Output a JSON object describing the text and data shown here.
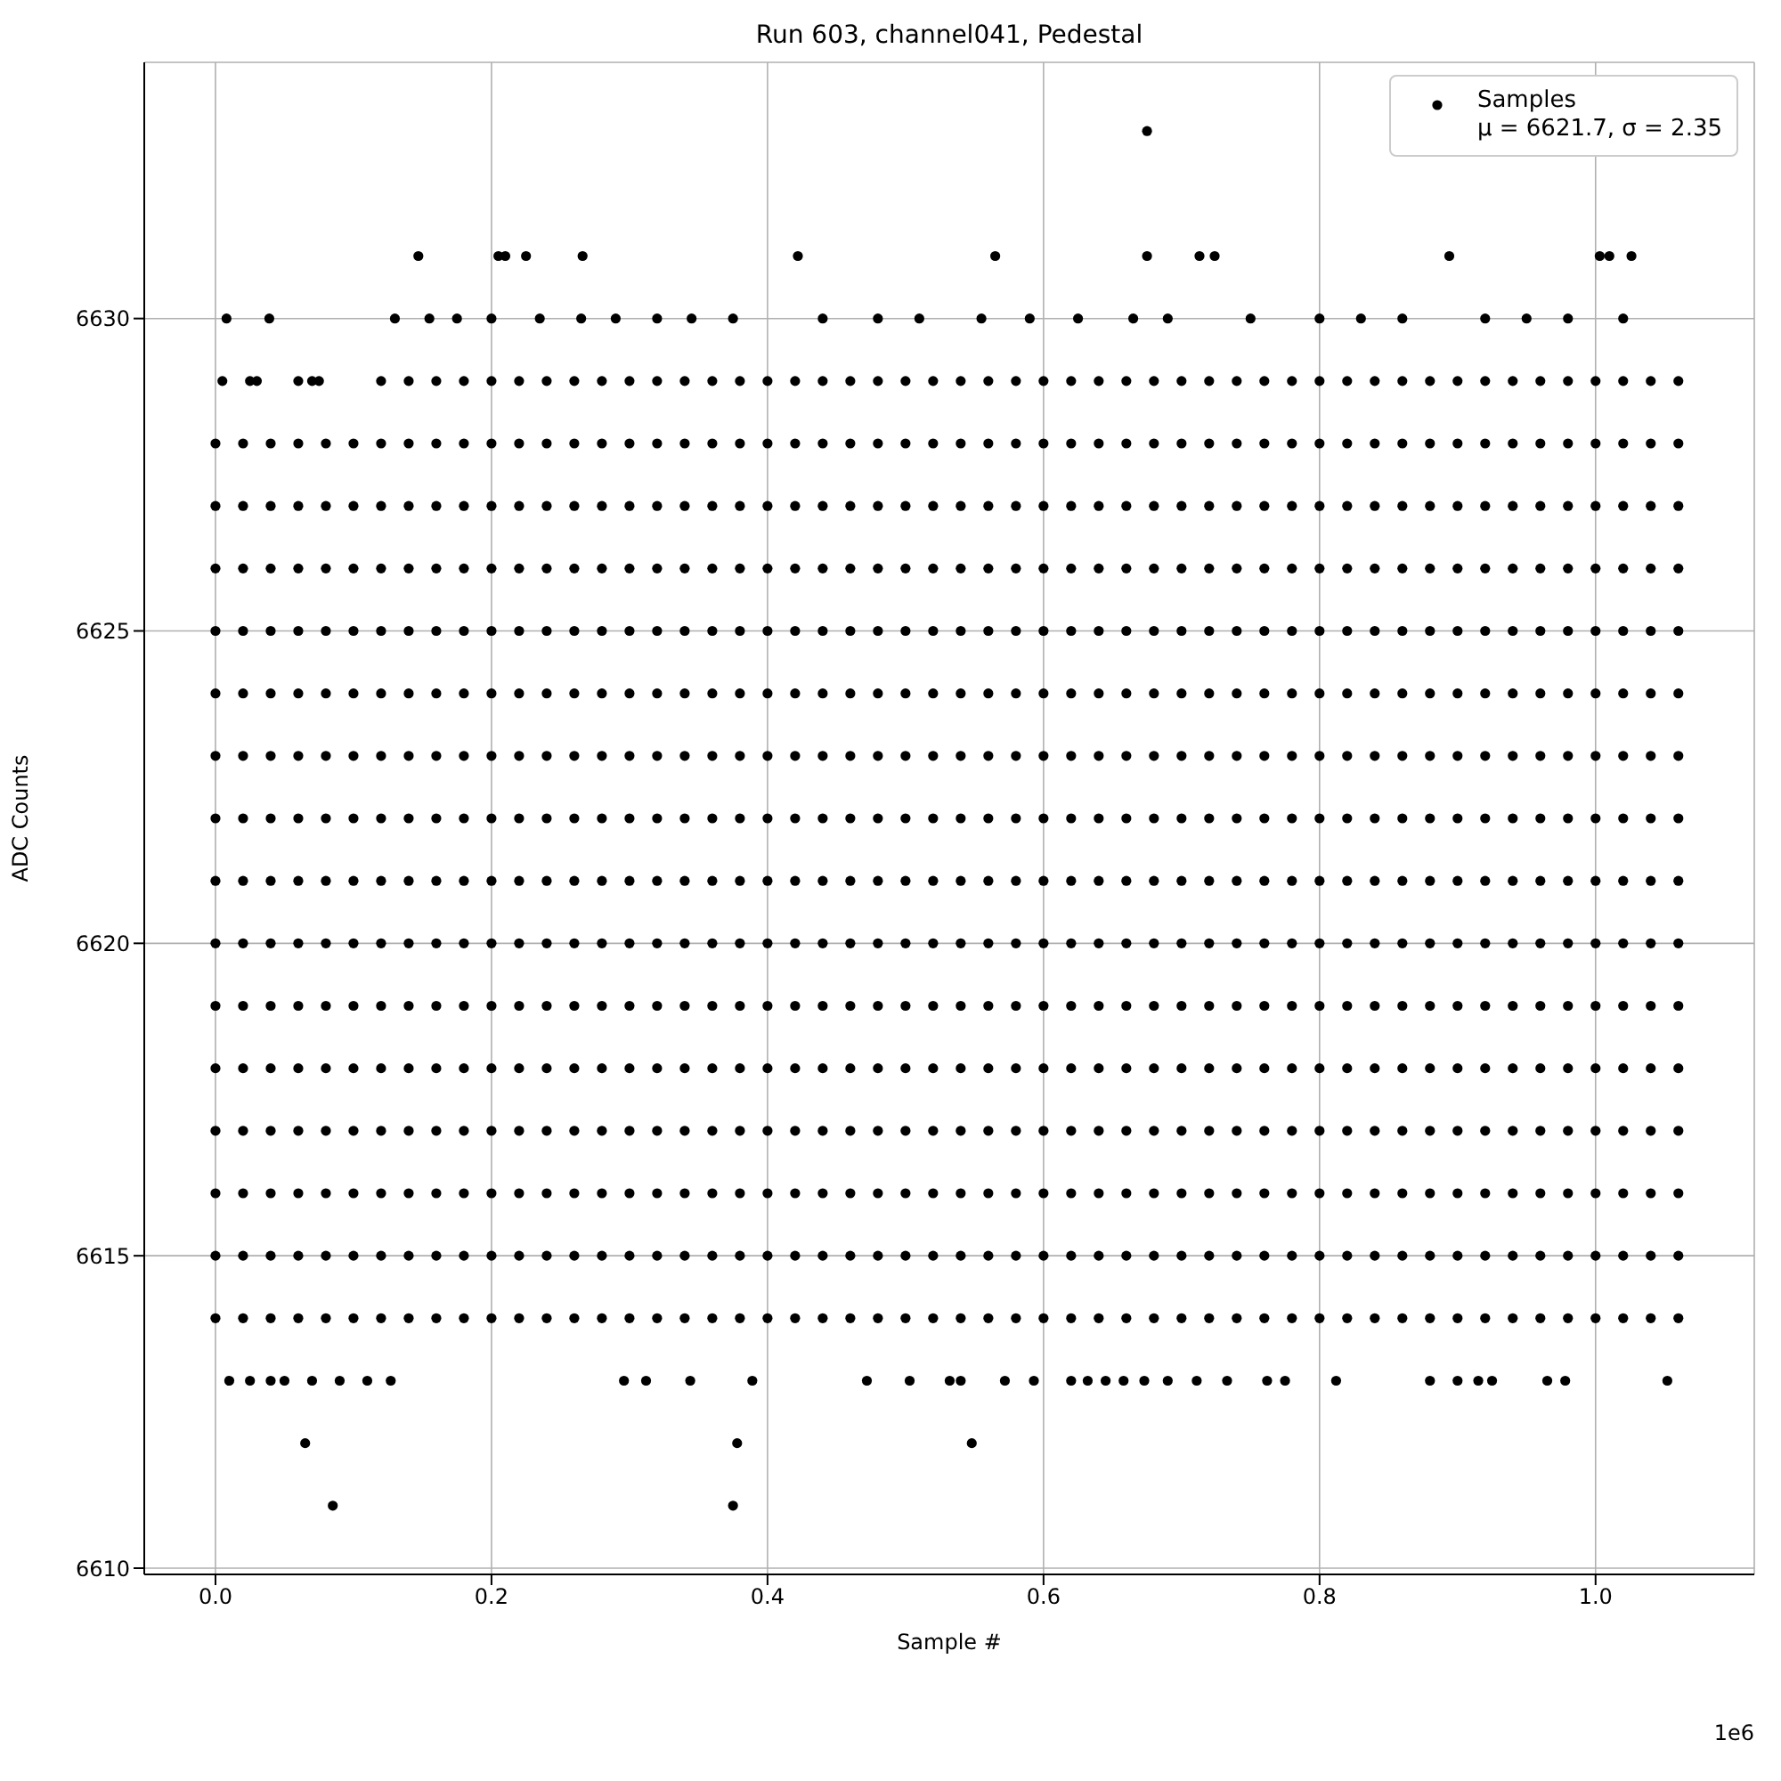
{
  "chart_data": {
    "type": "scatter",
    "title": "Run 603, channel041, Pedestal",
    "xlabel": "Sample #",
    "ylabel": "ADC Counts",
    "annotations": [
      "1e6"
    ],
    "xlim": [
      -0.0516,
      1.115
    ],
    "ylim": [
      6609.9,
      6634.1
    ],
    "xticks": [
      {
        "value": 0,
        "label": "0.0"
      },
      0.2,
      0.4,
      0.6,
      0.8,
      {
        "value": 1,
        "label": "1.0"
      }
    ],
    "yticks": [
      6610,
      6615,
      6620,
      6625,
      6630
    ],
    "grid": true,
    "legend": "top right",
    "marker": "circle",
    "x": [
      0,
      0.02,
      0.04,
      0.06,
      0.08,
      0.1,
      0.12,
      0.14,
      0.16,
      0.18,
      0.2,
      0.22,
      0.24,
      0.26,
      0.28,
      0.3,
      0.32,
      0.34,
      0.36,
      0.38,
      0.4,
      0.42,
      0.44,
      0.46,
      0.48,
      0.5,
      0.52,
      0.54,
      0.56,
      0.58,
      0.6,
      0.62,
      0.64,
      0.66,
      0.68,
      0.7,
      0.72,
      0.74,
      0.76,
      0.78,
      0.8,
      0.82,
      0.84,
      0.86,
      0.88,
      0.9,
      0.92,
      0.94,
      0.96,
      0.98,
      1,
      1.02,
      1.04,
      1.06
    ],
    "series": [
      {
        "name": "Samples\nμ = 6621.7, σ = 2.35",
        "color": "#000000",
        "x": [
          0.675,
          0.147,
          0.205,
          0.21,
          0.225,
          0.266,
          0.422,
          0.565,
          0.675,
          0.713,
          0.724,
          0.894,
          1.003,
          1.01,
          1.026,
          0.008,
          0.039,
          0.13,
          0.155,
          0.175,
          0.2,
          0.235,
          0.265,
          0.29,
          0.32,
          0.345,
          0.375,
          0.44,
          0.48,
          0.51,
          0.555,
          0.59,
          0.625,
          0.665,
          0.69,
          0.75,
          0.8,
          0.83,
          0.86,
          0.92,
          0.95,
          0.98,
          1.02,
          0.005,
          0.025,
          0.03,
          0.06,
          0.07,
          0.075,
          0.01,
          0.025,
          0.04,
          0.05,
          0.07,
          0.09,
          0.11,
          0.127,
          0.296,
          0.312,
          0.344,
          0.389,
          0.472,
          0.503,
          0.532,
          0.54,
          0.572,
          0.593,
          0.62,
          0.632,
          0.645,
          0.658,
          0.673,
          0.69,
          0.711,
          0.733,
          0.762,
          0.775,
          0.812,
          0.88,
          0.9,
          0.915,
          0.925,
          0.965,
          0.978,
          1.052,
          0.065,
          0.378,
          0.548,
          0.085,
          0.375
        ],
        "values": [
          6633,
          6631,
          6631,
          6631,
          6631,
          6631,
          6631,
          6631,
          6631,
          6631,
          6631,
          6631,
          6631,
          6631,
          6631,
          6630,
          6630,
          6630,
          6630,
          6630,
          6630,
          6630,
          6630,
          6630,
          6630,
          6630,
          6630,
          6630,
          6630,
          6630,
          6630,
          6630,
          6630,
          6630,
          6630,
          6630,
          6630,
          6630,
          6630,
          6630,
          6630,
          6630,
          6630,
          6629,
          6629,
          6629,
          6629,
          6629,
          6629,
          6613,
          6613,
          6613,
          6613,
          6613,
          6613,
          6613,
          6613,
          6613,
          6613,
          6613,
          6613,
          6613,
          6613,
          6613,
          6613,
          6613,
          6613,
          6613,
          6613,
          6613,
          6613,
          6613,
          6613,
          6613,
          6613,
          6613,
          6613,
          6613,
          6613,
          6613,
          6613,
          6613,
          6613,
          6613,
          6613,
          6612,
          6612,
          6612,
          6611,
          6611
        ]
      },
      {
        "color": "#000000",
        "values": [
          null,
          null,
          null,
          null,
          null,
          null,
          6629,
          6629,
          6629,
          6629,
          6629,
          6629,
          6629,
          6629,
          6629,
          6629,
          6629,
          6629,
          6629,
          6629,
          6629,
          6629,
          6629,
          6629,
          6629,
          6629,
          6629,
          6629,
          6629,
          6629,
          6629,
          6629,
          6629,
          6629,
          6629,
          6629,
          6629,
          6629,
          6629,
          6629,
          6629,
          6629,
          6629,
          6629,
          6629,
          6629,
          6629,
          6629,
          6629,
          6629,
          6629,
          6629,
          6629,
          6629
        ]
      },
      {
        "color": "#000000",
        "values": [
          6628,
          6628,
          6628,
          6628,
          6628,
          6628,
          6628,
          6628,
          6628,
          6628,
          6628,
          6628,
          6628,
          6628,
          6628,
          6628,
          6628,
          6628,
          6628,
          6628,
          6628,
          6628,
          6628,
          6628,
          6628,
          6628,
          6628,
          6628,
          6628,
          6628,
          6628,
          6628,
          6628,
          6628,
          6628,
          6628,
          6628,
          6628,
          6628,
          6628,
          6628,
          6628,
          6628,
          6628,
          6628,
          6628,
          6628,
          6628,
          6628,
          6628,
          6628,
          6628,
          6628,
          6628
        ]
      },
      {
        "color": "#000000",
        "values": [
          6627,
          6627,
          6627,
          6627,
          6627,
          6627,
          6627,
          6627,
          6627,
          6627,
          6627,
          6627,
          6627,
          6627,
          6627,
          6627,
          6627,
          6627,
          6627,
          6627,
          6627,
          6627,
          6627,
          6627,
          6627,
          6627,
          6627,
          6627,
          6627,
          6627,
          6627,
          6627,
          6627,
          6627,
          6627,
          6627,
          6627,
          6627,
          6627,
          6627,
          6627,
          6627,
          6627,
          6627,
          6627,
          6627,
          6627,
          6627,
          6627,
          6627,
          6627,
          6627,
          6627,
          6627
        ]
      },
      {
        "color": "#000000",
        "values": [
          6626,
          6626,
          6626,
          6626,
          6626,
          6626,
          6626,
          6626,
          6626,
          6626,
          6626,
          6626,
          6626,
          6626,
          6626,
          6626,
          6626,
          6626,
          6626,
          6626,
          6626,
          6626,
          6626,
          6626,
          6626,
          6626,
          6626,
          6626,
          6626,
          6626,
          6626,
          6626,
          6626,
          6626,
          6626,
          6626,
          6626,
          6626,
          6626,
          6626,
          6626,
          6626,
          6626,
          6626,
          6626,
          6626,
          6626,
          6626,
          6626,
          6626,
          6626,
          6626,
          6626,
          6626
        ]
      },
      {
        "color": "#000000",
        "values": [
          6625,
          6625,
          6625,
          6625,
          6625,
          6625,
          6625,
          6625,
          6625,
          6625,
          6625,
          6625,
          6625,
          6625,
          6625,
          6625,
          6625,
          6625,
          6625,
          6625,
          6625,
          6625,
          6625,
          6625,
          6625,
          6625,
          6625,
          6625,
          6625,
          6625,
          6625,
          6625,
          6625,
          6625,
          6625,
          6625,
          6625,
          6625,
          6625,
          6625,
          6625,
          6625,
          6625,
          6625,
          6625,
          6625,
          6625,
          6625,
          6625,
          6625,
          6625,
          6625,
          6625,
          6625
        ]
      },
      {
        "color": "#000000",
        "values": [
          6624,
          6624,
          6624,
          6624,
          6624,
          6624,
          6624,
          6624,
          6624,
          6624,
          6624,
          6624,
          6624,
          6624,
          6624,
          6624,
          6624,
          6624,
          6624,
          6624,
          6624,
          6624,
          6624,
          6624,
          6624,
          6624,
          6624,
          6624,
          6624,
          6624,
          6624,
          6624,
          6624,
          6624,
          6624,
          6624,
          6624,
          6624,
          6624,
          6624,
          6624,
          6624,
          6624,
          6624,
          6624,
          6624,
          6624,
          6624,
          6624,
          6624,
          6624,
          6624,
          6624,
          6624
        ]
      },
      {
        "color": "#000000",
        "values": [
          6623,
          6623,
          6623,
          6623,
          6623,
          6623,
          6623,
          6623,
          6623,
          6623,
          6623,
          6623,
          6623,
          6623,
          6623,
          6623,
          6623,
          6623,
          6623,
          6623,
          6623,
          6623,
          6623,
          6623,
          6623,
          6623,
          6623,
          6623,
          6623,
          6623,
          6623,
          6623,
          6623,
          6623,
          6623,
          6623,
          6623,
          6623,
          6623,
          6623,
          6623,
          6623,
          6623,
          6623,
          6623,
          6623,
          6623,
          6623,
          6623,
          6623,
          6623,
          6623,
          6623,
          6623
        ]
      },
      {
        "color": "#000000",
        "values": [
          6622,
          6622,
          6622,
          6622,
          6622,
          6622,
          6622,
          6622,
          6622,
          6622,
          6622,
          6622,
          6622,
          6622,
          6622,
          6622,
          6622,
          6622,
          6622,
          6622,
          6622,
          6622,
          6622,
          6622,
          6622,
          6622,
          6622,
          6622,
          6622,
          6622,
          6622,
          6622,
          6622,
          6622,
          6622,
          6622,
          6622,
          6622,
          6622,
          6622,
          6622,
          6622,
          6622,
          6622,
          6622,
          6622,
          6622,
          6622,
          6622,
          6622,
          6622,
          6622,
          6622,
          6622
        ]
      },
      {
        "color": "#000000",
        "values": [
          6621,
          6621,
          6621,
          6621,
          6621,
          6621,
          6621,
          6621,
          6621,
          6621,
          6621,
          6621,
          6621,
          6621,
          6621,
          6621,
          6621,
          6621,
          6621,
          6621,
          6621,
          6621,
          6621,
          6621,
          6621,
          6621,
          6621,
          6621,
          6621,
          6621,
          6621,
          6621,
          6621,
          6621,
          6621,
          6621,
          6621,
          6621,
          6621,
          6621,
          6621,
          6621,
          6621,
          6621,
          6621,
          6621,
          6621,
          6621,
          6621,
          6621,
          6621,
          6621,
          6621,
          6621
        ]
      },
      {
        "color": "#000000",
        "values": [
          6620,
          6620,
          6620,
          6620,
          6620,
          6620,
          6620,
          6620,
          6620,
          6620,
          6620,
          6620,
          6620,
          6620,
          6620,
          6620,
          6620,
          6620,
          6620,
          6620,
          6620,
          6620,
          6620,
          6620,
          6620,
          6620,
          6620,
          6620,
          6620,
          6620,
          6620,
          6620,
          6620,
          6620,
          6620,
          6620,
          6620,
          6620,
          6620,
          6620,
          6620,
          6620,
          6620,
          6620,
          6620,
          6620,
          6620,
          6620,
          6620,
          6620,
          6620,
          6620,
          6620,
          6620
        ]
      },
      {
        "color": "#000000",
        "values": [
          6619,
          6619,
          6619,
          6619,
          6619,
          6619,
          6619,
          6619,
          6619,
          6619,
          6619,
          6619,
          6619,
          6619,
          6619,
          6619,
          6619,
          6619,
          6619,
          6619,
          6619,
          6619,
          6619,
          6619,
          6619,
          6619,
          6619,
          6619,
          6619,
          6619,
          6619,
          6619,
          6619,
          6619,
          6619,
          6619,
          6619,
          6619,
          6619,
          6619,
          6619,
          6619,
          6619,
          6619,
          6619,
          6619,
          6619,
          6619,
          6619,
          6619,
          6619,
          6619,
          6619,
          6619
        ]
      },
      {
        "color": "#000000",
        "values": [
          6618,
          6618,
          6618,
          6618,
          6618,
          6618,
          6618,
          6618,
          6618,
          6618,
          6618,
          6618,
          6618,
          6618,
          6618,
          6618,
          6618,
          6618,
          6618,
          6618,
          6618,
          6618,
          6618,
          6618,
          6618,
          6618,
          6618,
          6618,
          6618,
          6618,
          6618,
          6618,
          6618,
          6618,
          6618,
          6618,
          6618,
          6618,
          6618,
          6618,
          6618,
          6618,
          6618,
          6618,
          6618,
          6618,
          6618,
          6618,
          6618,
          6618,
          6618,
          6618,
          6618,
          6618
        ]
      },
      {
        "color": "#000000",
        "values": [
          6617,
          6617,
          6617,
          6617,
          6617,
          6617,
          6617,
          6617,
          6617,
          6617,
          6617,
          6617,
          6617,
          6617,
          6617,
          6617,
          6617,
          6617,
          6617,
          6617,
          6617,
          6617,
          6617,
          6617,
          6617,
          6617,
          6617,
          6617,
          6617,
          6617,
          6617,
          6617,
          6617,
          6617,
          6617,
          6617,
          6617,
          6617,
          6617,
          6617,
          6617,
          6617,
          6617,
          6617,
          6617,
          6617,
          6617,
          6617,
          6617,
          6617,
          6617,
          6617,
          6617,
          6617
        ]
      },
      {
        "color": "#000000",
        "values": [
          6616,
          6616,
          6616,
          6616,
          6616,
          6616,
          6616,
          6616,
          6616,
          6616,
          6616,
          6616,
          6616,
          6616,
          6616,
          6616,
          6616,
          6616,
          6616,
          6616,
          6616,
          6616,
          6616,
          6616,
          6616,
          6616,
          6616,
          6616,
          6616,
          6616,
          6616,
          6616,
          6616,
          6616,
          6616,
          6616,
          6616,
          6616,
          6616,
          6616,
          6616,
          6616,
          6616,
          6616,
          6616,
          6616,
          6616,
          6616,
          6616,
          6616,
          6616,
          6616,
          6616,
          6616
        ]
      },
      {
        "color": "#000000",
        "values": [
          6615,
          6615,
          6615,
          6615,
          6615,
          6615,
          6615,
          6615,
          6615,
          6615,
          6615,
          6615,
          6615,
          6615,
          6615,
          6615,
          6615,
          6615,
          6615,
          6615,
          6615,
          6615,
          6615,
          6615,
          6615,
          6615,
          6615,
          6615,
          6615,
          6615,
          6615,
          6615,
          6615,
          6615,
          6615,
          6615,
          6615,
          6615,
          6615,
          6615,
          6615,
          6615,
          6615,
          6615,
          6615,
          6615,
          6615,
          6615,
          6615,
          6615,
          6615,
          6615,
          6615,
          6615
        ]
      },
      {
        "color": "#000000",
        "values": [
          6614,
          6614,
          6614,
          6614,
          6614,
          6614,
          6614,
          6614,
          6614,
          6614,
          6614,
          6614,
          6614,
          6614,
          6614,
          6614,
          6614,
          6614,
          6614,
          6614,
          6614,
          6614,
          6614,
          6614,
          6614,
          6614,
          6614,
          6614,
          6614,
          6614,
          6614,
          6614,
          6614,
          6614,
          6614,
          6614,
          6614,
          6614,
          6614,
          6614,
          6614,
          6614,
          6614,
          6614,
          6614,
          6614,
          6614,
          6614,
          6614,
          6614,
          6614,
          6614,
          6614,
          6614
        ]
      }
    ]
  }
}
